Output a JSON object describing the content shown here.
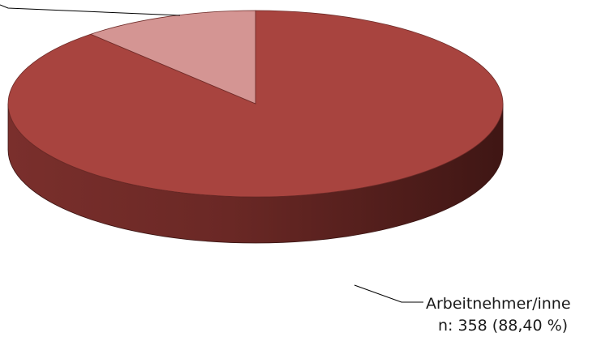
{
  "chart_data": {
    "type": "pie",
    "style": "3d",
    "title": "",
    "slices": [
      {
        "label_lines": [
          "Arbeitnehmer/inne",
          "n: 358 (88,40 %)"
        ],
        "value": 358,
        "percent": 88.4,
        "color": "#a8443f"
      },
      {
        "label_lines": [],
        "value": 47,
        "percent": 11.6,
        "color": "#d49593"
      }
    ],
    "legend": "none"
  }
}
